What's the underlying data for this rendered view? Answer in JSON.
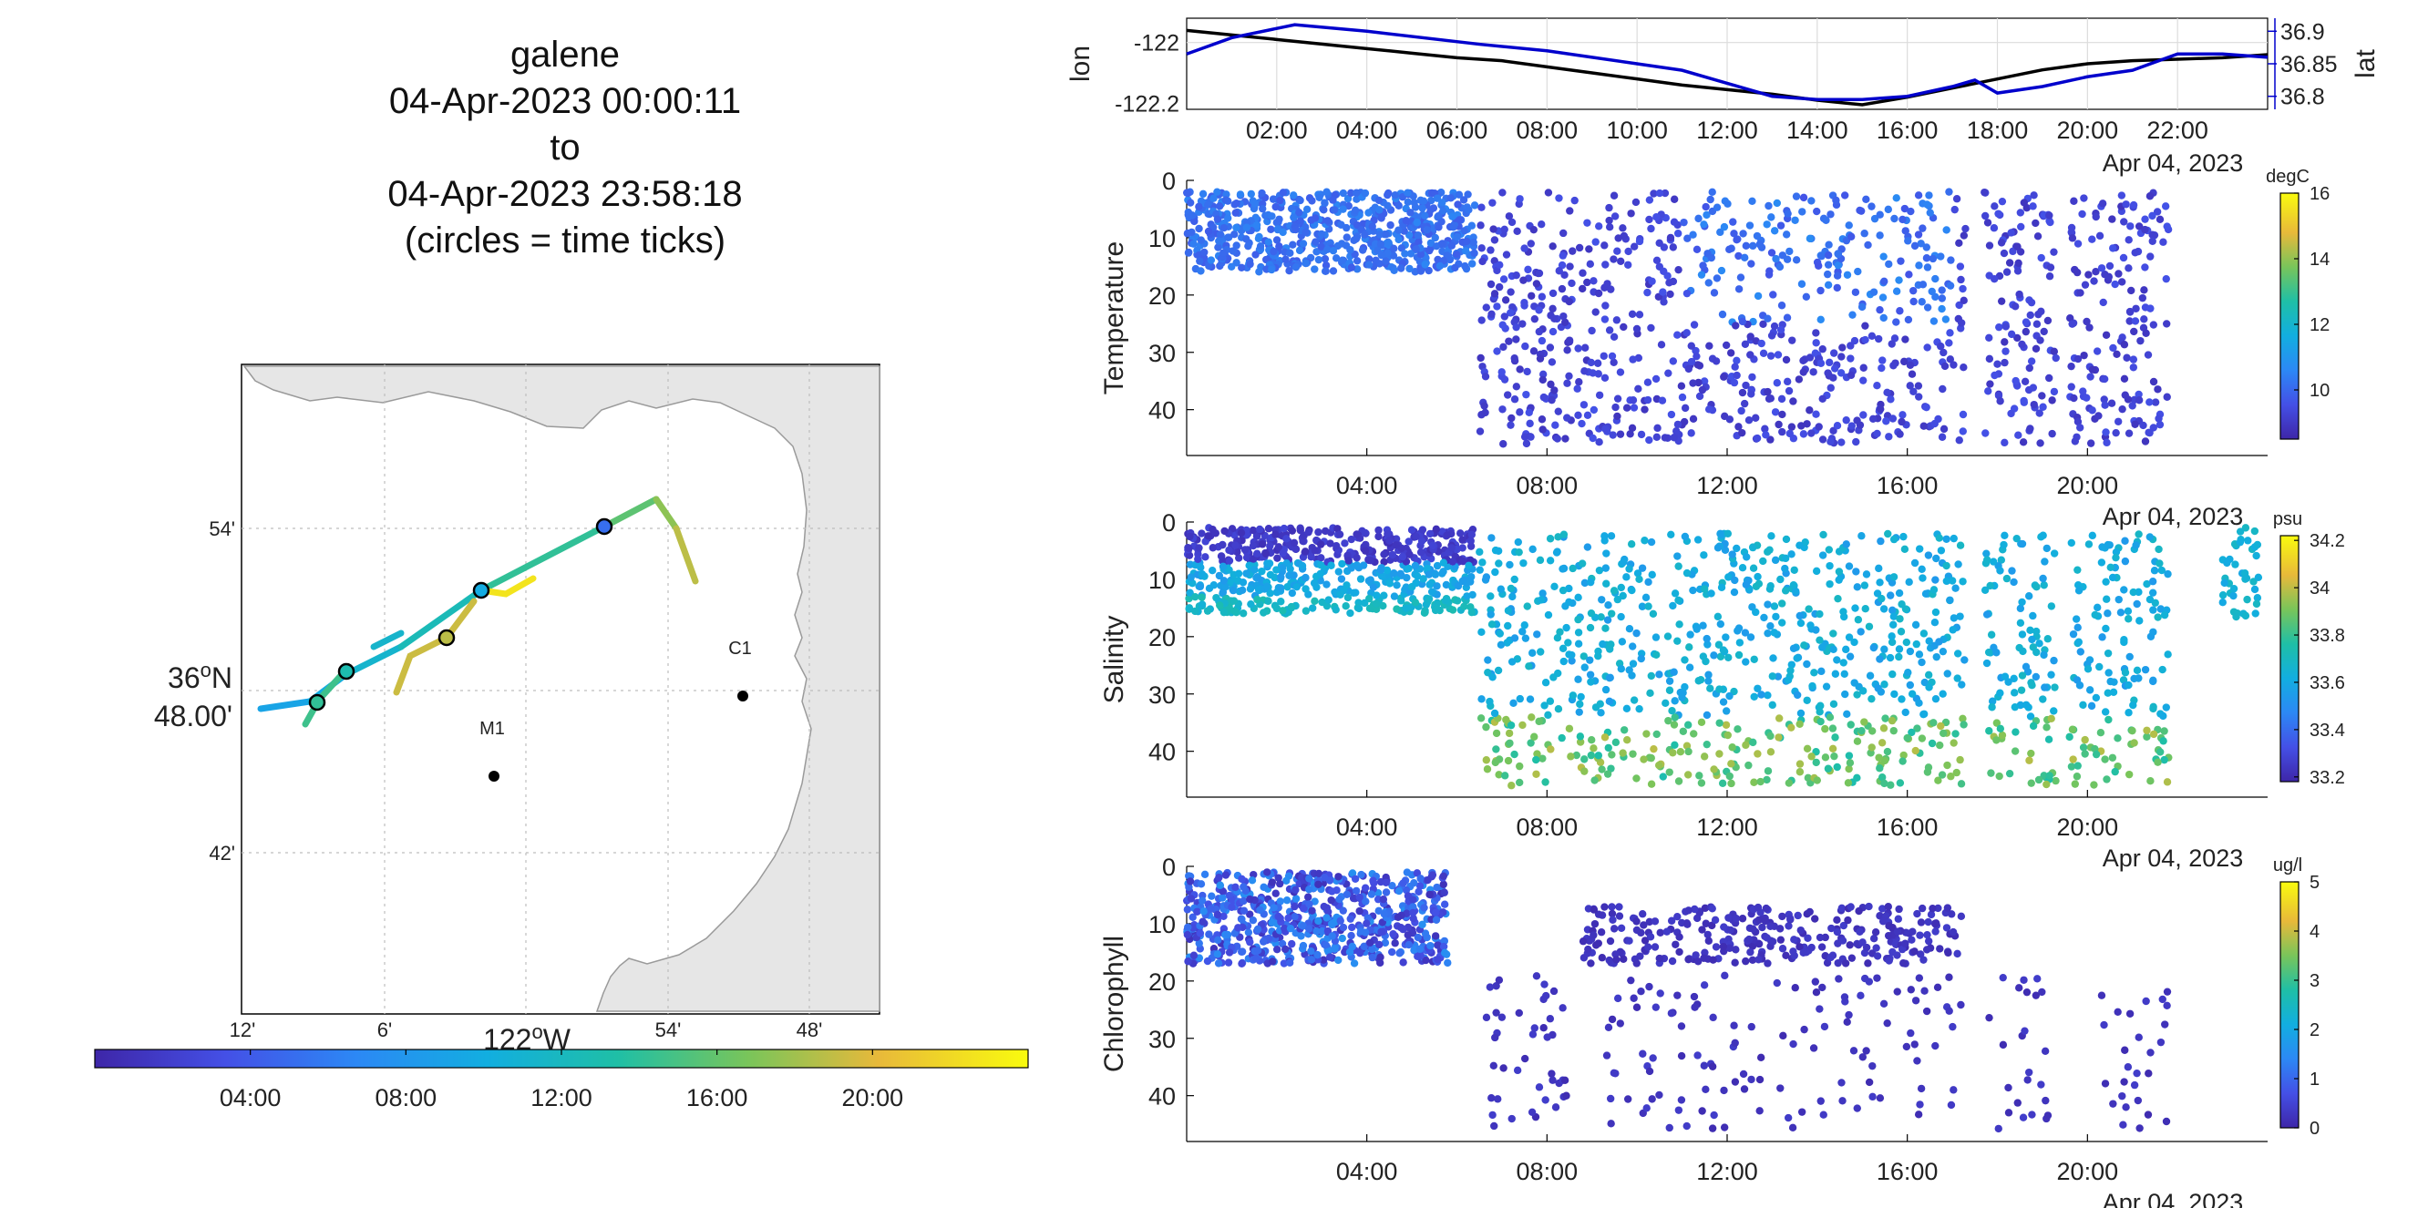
{
  "title": {
    "vehicle": "galene",
    "start": "04-Apr-2023 00:00:11",
    "to": "to",
    "end": "04-Apr-2023 23:58:18",
    "note": "(circles = time ticks)"
  },
  "map": {
    "lat_tick_labels": [
      "54'",
      "36°N 48.00'",
      "42'"
    ],
    "lat_main_label": "36",
    "lat_main_suffix": "N",
    "lat_sub_label": "48.00'",
    "lon_tick_labels": [
      "12'",
      "6'",
      "54'",
      "48'"
    ],
    "lon_main_label": "122",
    "lon_main_suffix": "W",
    "stations": [
      {
        "name": "C1"
      },
      {
        "name": "M1"
      }
    ],
    "colorbar_ticks": [
      "04:00",
      "08:00",
      "12:00",
      "16:00",
      "20:00"
    ],
    "colors": {
      "land": "#e6e6e6",
      "coast": "#9a9a9a",
      "grid": "#bdbdbd"
    }
  },
  "chart_data": [
    {
      "type": "line",
      "id": "lonlat",
      "series": [
        {
          "name": "lon",
          "color": "#000000",
          "y_axis": "left",
          "x_hours": [
            0,
            1,
            2,
            3,
            4,
            5,
            6,
            7,
            8,
            9,
            10,
            11,
            12,
            13,
            14,
            15,
            16,
            17,
            18,
            19,
            20,
            21,
            22,
            23,
            24
          ],
          "values": [
            -121.96,
            -121.975,
            -121.99,
            -122.005,
            -122.02,
            -122.035,
            -122.05,
            -122.06,
            -122.08,
            -122.1,
            -122.12,
            -122.14,
            -122.155,
            -122.17,
            -122.19,
            -122.205,
            -122.18,
            -122.15,
            -122.12,
            -122.09,
            -122.07,
            -122.06,
            -122.055,
            -122.05,
            -122.04
          ]
        },
        {
          "name": "lat",
          "color": "#0000cc",
          "y_axis": "right",
          "x_hours": [
            0,
            1,
            2.4,
            4,
            6.5,
            8,
            9,
            10,
            11,
            12,
            13,
            14,
            15,
            16,
            17,
            17.5,
            18,
            19,
            20,
            21,
            22,
            23,
            24
          ],
          "values": [
            36.865,
            36.89,
            36.91,
            36.9,
            36.88,
            36.87,
            36.86,
            36.85,
            36.84,
            36.82,
            36.8,
            36.795,
            36.795,
            36.8,
            36.815,
            36.825,
            36.805,
            36.815,
            36.83,
            36.84,
            36.865,
            36.865,
            36.86
          ]
        }
      ],
      "ylabel_left": "lon",
      "ylabel_right": "lat",
      "yticks_left": [
        "-122",
        "-122.2"
      ],
      "yticks_right": [
        "36.9",
        "36.85",
        "36.8"
      ],
      "xticks": [
        "02:00",
        "04:00",
        "06:00",
        "08:00",
        "10:00",
        "12:00",
        "14:00",
        "16:00",
        "18:00",
        "20:00",
        "22:00"
      ],
      "xdate": "Apr 04, 2023",
      "xlim_hours": [
        0,
        24
      ],
      "ylim_left": [
        -122.22,
        -121.92
      ],
      "ylim_right": [
        36.78,
        36.92
      ],
      "grid": true
    },
    {
      "type": "scatter",
      "id": "temperature",
      "ylabel": "Temperature",
      "ylim": [
        0,
        48
      ],
      "yticks": [
        "0",
        "10",
        "20",
        "30",
        "40"
      ],
      "xticks": [
        "04:00",
        "08:00",
        "12:00",
        "16:00",
        "20:00"
      ],
      "xdate": "Apr 04, 2023",
      "colorbar": {
        "unit": "degC",
        "ticks": [
          "16",
          "14",
          "12",
          "10"
        ],
        "range": [
          8.5,
          16
        ]
      },
      "upper_band": {
        "t": [
          0,
          6.4
        ],
        "depth": [
          2,
          16
        ],
        "c": [
          9.8,
          10.6
        ]
      },
      "gaps": [
        [
          8.9,
          9.3
        ],
        [
          17.4,
          17.7
        ],
        [
          19.3,
          19.6
        ],
        [
          22,
          24
        ]
      ],
      "sparse_region": {
        "t": [
          6.4,
          22
        ],
        "depth": [
          2,
          46
        ],
        "c": [
          8.9,
          9.4
        ]
      },
      "warm_points": {
        "t": [
          11.5,
          16.5
        ],
        "depth": [
          2,
          25
        ],
        "c": [
          9.6,
          10.2
        ]
      }
    },
    {
      "type": "scatter",
      "id": "salinity",
      "ylabel": "Salinity",
      "ylim": [
        0,
        48
      ],
      "yticks": [
        "0",
        "10",
        "20",
        "30",
        "40"
      ],
      "xticks": [
        "04:00",
        "08:00",
        "12:00",
        "16:00",
        "20:00"
      ],
      "xdate": "Apr 04, 2023",
      "colorbar": {
        "unit": "psu",
        "ticks": [
          "34.2",
          "34",
          "33.8",
          "33.6",
          "33.4",
          "33.2"
        ],
        "range": [
          33.18,
          34.22
        ]
      },
      "upper_band": {
        "t": [
          0,
          6.4
        ],
        "depth": [
          1,
          16
        ]
      },
      "late_points": {
        "t": [
          23.0,
          23.8
        ],
        "depth": [
          1,
          17
        ],
        "c": [
          33.55,
          33.65
        ]
      }
    },
    {
      "type": "scatter",
      "id": "chlorophyll",
      "ylabel": "Chlorophyll",
      "ylim": [
        0,
        48
      ],
      "yticks": [
        "0",
        "10",
        "20",
        "30",
        "40"
      ],
      "xticks": [
        "04:00",
        "08:00",
        "12:00",
        "16:00",
        "20:00"
      ],
      "xdate": "Apr 04, 2023",
      "colorbar": {
        "unit": "ug/l",
        "ticks": [
          "5",
          "4",
          "3",
          "2",
          "1",
          "0"
        ],
        "range": [
          0,
          5
        ]
      },
      "upper_band": {
        "t": [
          0,
          5.8
        ],
        "depth": [
          1,
          17
        ],
        "c": [
          0.2,
          1.6
        ]
      },
      "mid_layer": {
        "t": [
          8.8,
          17.2
        ],
        "depth": [
          7,
          17
        ],
        "c": [
          0.1,
          0.4
        ]
      },
      "deep_layer": {
        "t": [
          6.5,
          21.8
        ],
        "depth": [
          19,
          46
        ],
        "c": [
          0.1,
          0.4
        ]
      }
    }
  ]
}
